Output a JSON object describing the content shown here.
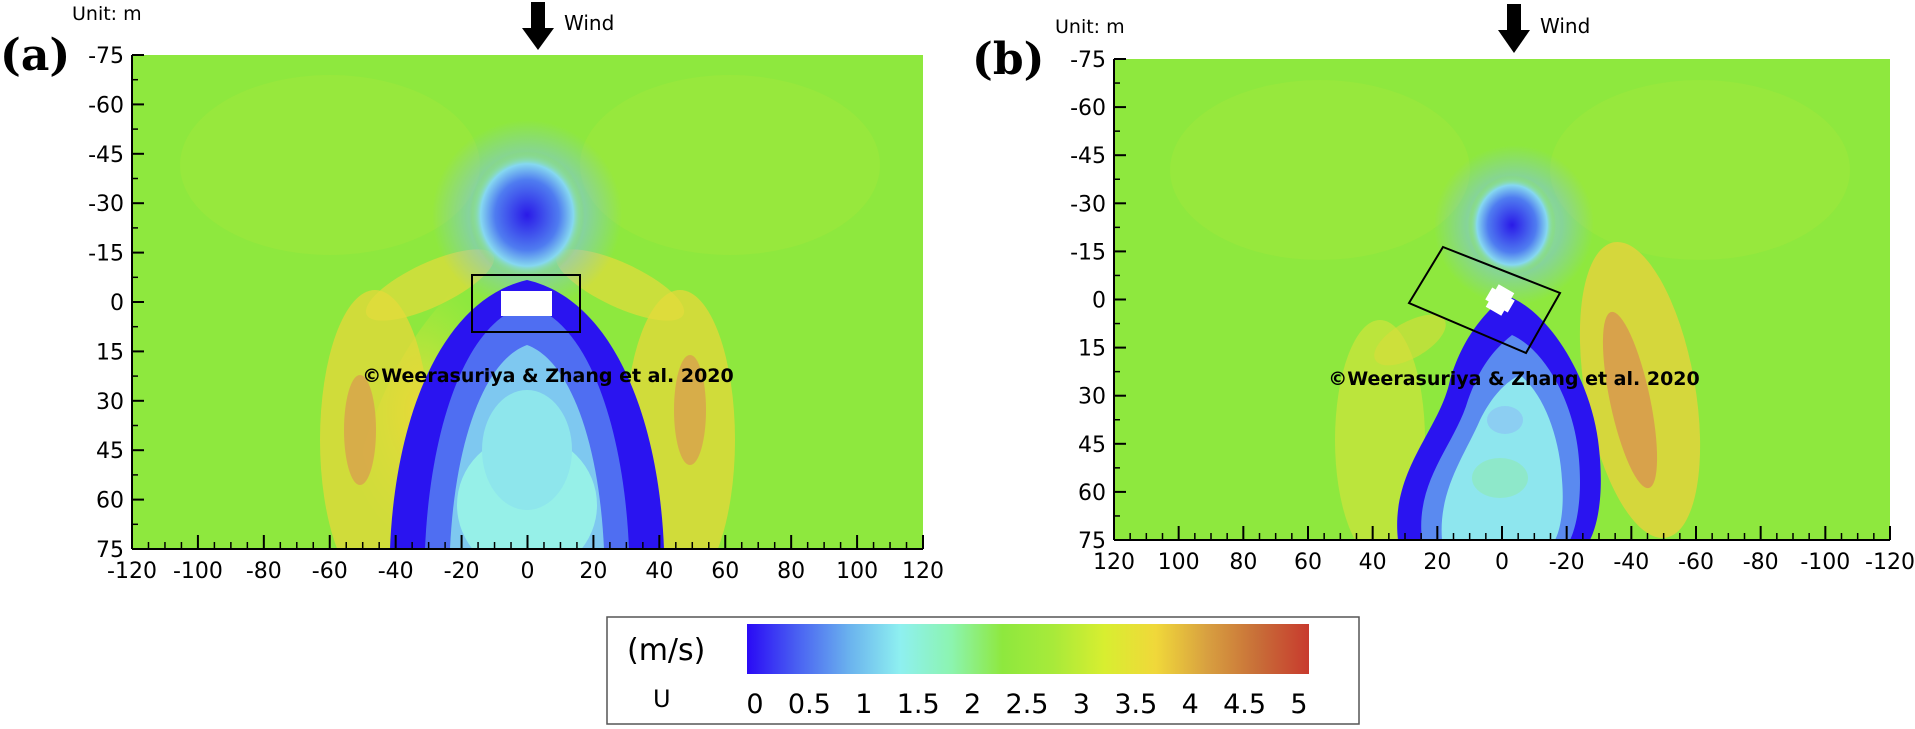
{
  "colors": {
    "field_background": "#8ee83e",
    "wake_dark": "#2a14f0",
    "wake_light": "#8ef0f0",
    "high_speed": "#d4a04a",
    "building": "#ffffff",
    "outline": "#000000"
  },
  "chart_data": [
    {
      "type": "heatmap",
      "panel_label": "(a)",
      "unit_label": "Unit: m",
      "wind_label": "Wind",
      "watermark": "©Weerasuriya & Zhang et al. 2020",
      "x_ticks": [
        "-120",
        "-100",
        "-80",
        "-60",
        "-40",
        "-20",
        "0",
        "20",
        "40",
        "60",
        "80",
        "100",
        "120"
      ],
      "y_ticks": [
        "-75",
        "-60",
        "-45",
        "-30",
        "-15",
        "0",
        "15",
        "30",
        "45",
        "60",
        "75"
      ],
      "xlim": [
        -120,
        120
      ],
      "ylim": [
        -75,
        75
      ],
      "building_rotation_deg": 0
    },
    {
      "type": "heatmap",
      "panel_label": "(b)",
      "unit_label": "Unit: m",
      "wind_label": "Wind",
      "watermark": "©Weerasuriya & Zhang et al. 2020",
      "x_ticks": [
        "120",
        "100",
        "80",
        "60",
        "40",
        "20",
        "0",
        "-20",
        "-40",
        "-60",
        "-80",
        "-100",
        "-120"
      ],
      "y_ticks": [
        "-75",
        "-60",
        "-45",
        "-30",
        "-15",
        "0",
        "15",
        "30",
        "45",
        "60",
        "75"
      ],
      "xlim": [
        120,
        -120
      ],
      "ylim": [
        -75,
        75
      ],
      "building_rotation_deg": 30
    }
  ],
  "colorbar": {
    "unit": "(m/s)",
    "variable": "U",
    "ticks": [
      "0",
      "0.5",
      "1",
      "1.5",
      "2",
      "2.5",
      "3",
      "3.5",
      "4",
      "4.5",
      "5"
    ],
    "range": [
      0,
      5
    ],
    "stops": [
      "#2a0af5",
      "#4a62f2",
      "#6ab2ee",
      "#8ef0f0",
      "#8cf4b0",
      "#8ee83e",
      "#a8ea3a",
      "#d8ee30",
      "#f0d83a",
      "#d8a040",
      "#c86e38",
      "#c83a2e"
    ]
  }
}
